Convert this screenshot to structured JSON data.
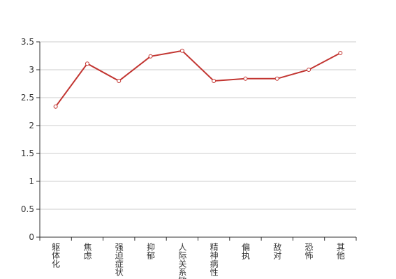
{
  "chart_data": {
    "type": "line",
    "categories": [
      "躯体化",
      "焦虑",
      "强迫症状",
      "抑郁",
      "人际关系敏感",
      "精神病性",
      "偏执",
      "敌对",
      "恐怖",
      "其他"
    ],
    "values": [
      2.34,
      3.11,
      2.8,
      3.24,
      3.34,
      2.8,
      2.84,
      2.84,
      3.0,
      3.3
    ],
    "color": "#c23531",
    "ylim": [
      0,
      3.5
    ],
    "yticks": [
      0,
      0.5,
      1,
      1.5,
      2,
      2.5,
      3,
      3.5
    ],
    "grid": true
  }
}
